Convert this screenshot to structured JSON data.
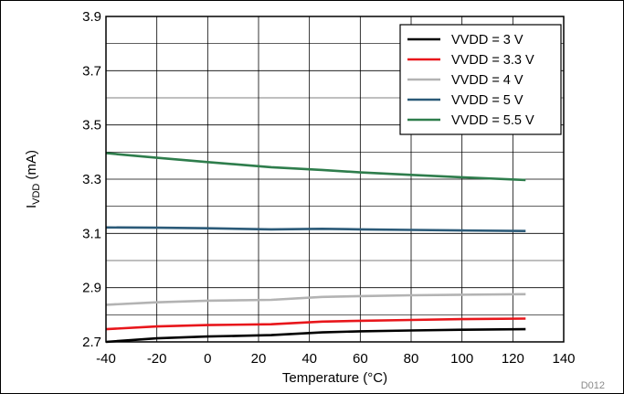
{
  "chart_data": {
    "type": "line",
    "xlabel": "Temperature (°C)",
    "ylabel_main": "I",
    "ylabel_sub": "VDD",
    "ylabel_unit": " (mA)",
    "xlim": [
      -40,
      140
    ],
    "ylim": [
      2.7,
      3.9
    ],
    "x_ticks": [
      -40,
      -20,
      0,
      20,
      40,
      60,
      80,
      100,
      120,
      140
    ],
    "y_ticks": [
      2.7,
      2.9,
      3.1,
      3.3,
      3.5,
      3.7,
      3.9
    ],
    "y_tick_labels": [
      "2.7",
      "2.9",
      "3.1",
      "3.3",
      "3.5",
      "3.7",
      "3.9"
    ],
    "grid": true,
    "legend_position": "top-right",
    "footnote": "D012",
    "x": [
      -40,
      -20,
      0,
      25,
      45,
      60,
      80,
      100,
      125
    ],
    "series": [
      {
        "name": "VVDD = 3 V",
        "color": "#000000",
        "values": [
          2.7,
          2.713,
          2.72,
          2.725,
          2.735,
          2.739,
          2.742,
          2.745,
          2.747
        ]
      },
      {
        "name": "VVDD = 3.3 V",
        "color": "#e8161b",
        "values": [
          2.747,
          2.757,
          2.762,
          2.765,
          2.775,
          2.778,
          2.781,
          2.784,
          2.786
        ]
      },
      {
        "name": "VVDD = 4 V",
        "color": "#b3b3b3",
        "values": [
          2.837,
          2.846,
          2.852,
          2.855,
          2.866,
          2.869,
          2.872,
          2.874,
          2.876
        ]
      },
      {
        "name": "VVDD = 5 V",
        "color": "#2b5a78",
        "values": [
          3.122,
          3.121,
          3.119,
          3.115,
          3.117,
          3.115,
          3.113,
          3.111,
          3.109
        ]
      },
      {
        "name": "VVDD = 5.5 V",
        "color": "#2e7d4c",
        "values": [
          3.396,
          3.379,
          3.363,
          3.344,
          3.334,
          3.325,
          3.316,
          3.307,
          3.297
        ]
      }
    ]
  }
}
